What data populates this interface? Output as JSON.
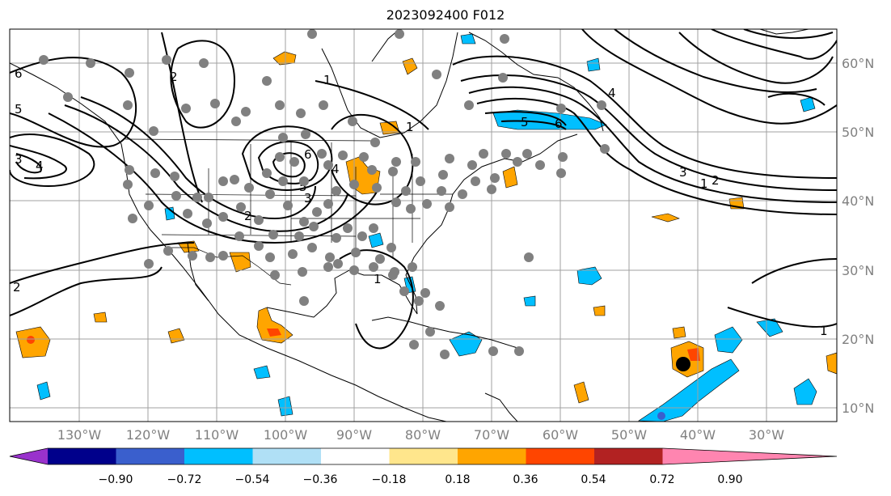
{
  "title": "2023092400 F012",
  "map": {
    "lon_ticks": [
      "130°W",
      "120°W",
      "110°W",
      "100°W",
      "90°W",
      "80°W",
      "70°W",
      "60°W",
      "50°W",
      "40°W",
      "30°W"
    ],
    "lat_ticks": [
      "60°N",
      "50°N",
      "40°N",
      "30°N",
      "20°N",
      "10°N"
    ],
    "contour_labels": [
      "6",
      "5",
      "4",
      "3",
      "2",
      "1",
      "6",
      "5",
      "4",
      "3",
      "2",
      "1",
      "6",
      "5",
      "4",
      "3",
      "2",
      "1",
      "1",
      "2",
      "1"
    ],
    "colors": {
      "contour": "#000000",
      "grid": "#a0a0a0",
      "station": "#808080",
      "storm": "#000000"
    }
  },
  "colorbar": {
    "tick_labels": [
      "−0.90",
      "−0.72",
      "−0.54",
      "−0.36",
      "−0.18",
      "0.18",
      "0.36",
      "0.54",
      "0.72",
      "0.90"
    ],
    "colors": [
      "#9932cc",
      "#00008b",
      "#3a5fcd",
      "#00bfff",
      "#b0e0f6",
      "#ffffff",
      "#ffe68c",
      "#ffa500",
      "#ff4500",
      "#b22222",
      "#ff85b0"
    ]
  }
}
